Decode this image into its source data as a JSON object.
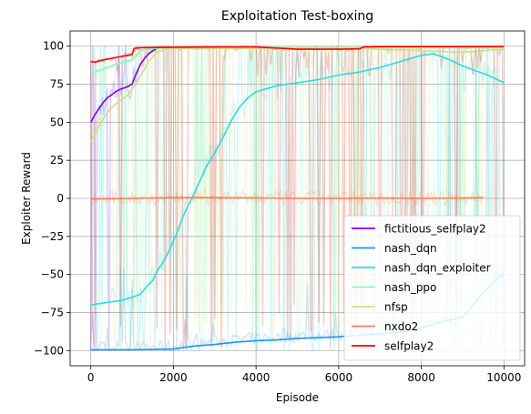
{
  "chart_data": {
    "type": "line",
    "title": "Exploitation Test-boxing",
    "xlabel": "Episode",
    "ylabel": "Exploiter Reward",
    "xlim": [
      -500,
      10500
    ],
    "ylim": [
      -110,
      110
    ],
    "xticks": [
      0,
      2000,
      4000,
      6000,
      8000,
      10000
    ],
    "yticks": [
      -100,
      -75,
      -50,
      -25,
      0,
      25,
      50,
      75,
      100
    ],
    "grid": true,
    "legend_position": "lower-right",
    "series": [
      {
        "name": "fictitious_selfplay2",
        "color": "#7f00ff",
        "x": [
          0,
          100,
          200,
          300,
          400,
          500,
          600,
          700,
          800,
          900,
          1000,
          1100,
          1200,
          1300,
          1400,
          1500,
          1600
        ],
        "y": [
          50,
          55,
          59,
          63,
          66,
          68,
          70,
          71.5,
          72.5,
          73.5,
          75,
          82,
          88,
          92,
          95,
          97,
          98.5
        ]
      },
      {
        "name": "nash_dqn",
        "color": "#1996f3",
        "x": [
          0,
          1000,
          1500,
          2000,
          2500,
          3000,
          3500,
          4000,
          4500,
          5000,
          5500,
          6000,
          6500,
          7000,
          7500,
          8000,
          8500,
          9000,
          9500,
          10000
        ],
        "y": [
          -99.5,
          -99.5,
          -99.3,
          -99,
          -97,
          -96,
          -94.5,
          -93.5,
          -93,
          -92,
          -91.5,
          -91,
          -90,
          -89,
          -88,
          -85,
          -81,
          -78,
          -62,
          -49
        ]
      },
      {
        "name": "nash_dqn_exploiter",
        "color": "#2adddd",
        "x": [
          0,
          250,
          500,
          750,
          1000,
          1200,
          1350,
          1500,
          1600,
          1750,
          1900,
          2000,
          2100,
          2200,
          2350,
          2500,
          2650,
          2800,
          3000,
          3200,
          3400,
          3600,
          3800,
          4000,
          4500,
          5000,
          5500,
          6000,
          6500,
          7000,
          7500,
          8000,
          8300,
          8700,
          9000,
          9300,
          9600,
          10000
        ],
        "y": [
          -70,
          -69,
          -68,
          -67,
          -65,
          -63,
          -58,
          -54,
          -48,
          -42,
          -34,
          -28,
          -22,
          -14,
          -5,
          3,
          12,
          21,
          30,
          40,
          51,
          60,
          66,
          70,
          74,
          76,
          78,
          81,
          83,
          86,
          90,
          94,
          95,
          91,
          87,
          84,
          81,
          76
        ]
      },
      {
        "name": "nash_ppo",
        "color": "#80ffb4",
        "x": [
          0,
          200,
          400,
          600,
          800,
          1000,
          1200,
          1500,
          2000,
          3000,
          4000,
          5000,
          6000,
          7000,
          8000,
          9000,
          10000
        ],
        "y": [
          82,
          84,
          86,
          88,
          89.5,
          91,
          97,
          98.5,
          99,
          99,
          99,
          99,
          99,
          99,
          99,
          99,
          99
        ]
      },
      {
        "name": "nfsp",
        "color": "#d4dd80",
        "x": [
          0,
          150,
          300,
          450,
          600,
          750,
          900,
          1000,
          1200,
          1400,
          1600,
          1800,
          2000,
          3000,
          4000,
          5000,
          6000,
          7000,
          8000,
          9000,
          9500,
          10000
        ],
        "y": [
          37,
          45,
          52,
          58,
          62,
          65,
          68,
          72,
          80,
          90,
          96,
          98,
          98.5,
          98.5,
          98.5,
          98.5,
          98.5,
          98,
          97,
          96,
          97,
          98
        ]
      },
      {
        "name": "nxdo2",
        "color": "#ff7f4f",
        "x": [
          0,
          1000,
          2000,
          3000,
          4000,
          5000,
          6000,
          7000,
          8000,
          9000,
          9500
        ],
        "y": [
          -0.5,
          0,
          0.5,
          0.5,
          0.3,
          0,
          0,
          0.2,
          0,
          0.2,
          0.5
        ]
      },
      {
        "name": "selfplay2",
        "color": "#ff0000",
        "x": [
          0,
          100,
          300,
          500,
          700,
          900,
          1000,
          1050,
          1200,
          2000,
          3000,
          4000,
          5000,
          6000,
          6500,
          6600,
          7000,
          8000,
          9000,
          10000
        ],
        "y": [
          90,
          89.5,
          91,
          92,
          93,
          94,
          94.5,
          98.5,
          99,
          99.3,
          99.5,
          99.5,
          98,
          98,
          98.2,
          99.5,
          99.7,
          99.7,
          99.7,
          99.8
        ]
      }
    ]
  }
}
